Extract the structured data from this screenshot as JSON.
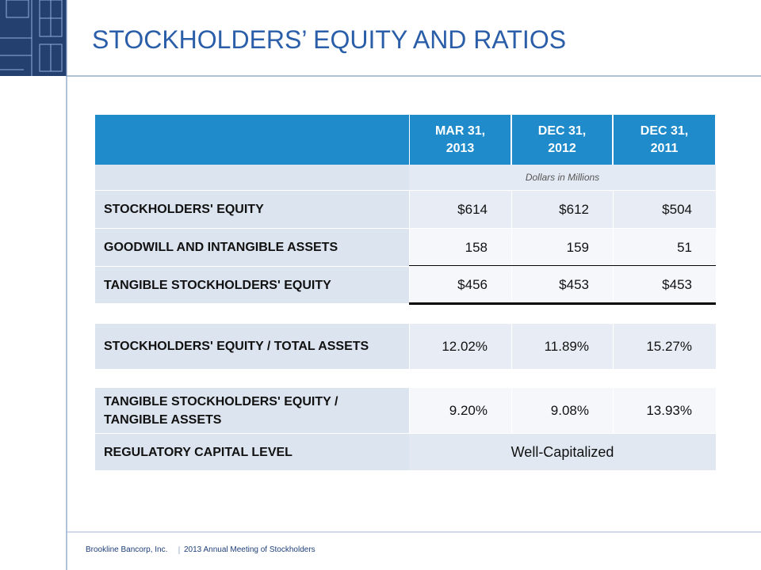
{
  "title": "STOCKHOLDERS’ EQUITY AND RATIOS",
  "table": {
    "columns": [
      "MAR 31, 2013",
      "DEC 31, 2012",
      "DEC 31, 2011"
    ],
    "unit_note": "Dollars in Millions",
    "rows": [
      {
        "label": "STOCKHOLDERS' EQUITY",
        "values": [
          "$614",
          "$612",
          "$504"
        ]
      },
      {
        "label": "GOODWILL AND INTANGIBLE ASSETS",
        "values": [
          "158",
          "159",
          "51"
        ]
      },
      {
        "label": "TANGIBLE STOCKHOLDERS' EQUITY",
        "values": [
          "$456",
          "$453",
          "$453"
        ]
      },
      {
        "label": "STOCKHOLDERS' EQUITY / TOTAL ASSETS",
        "values": [
          "12.02%",
          "11.89%",
          "15.27%"
        ]
      },
      {
        "label": "TANGIBLE STOCKHOLDERS' EQUITY / TANGIBLE ASSETS",
        "values": [
          "9.20%",
          "9.08%",
          "13.93%"
        ]
      },
      {
        "label": "REGULATORY CAPITAL LEVEL",
        "values": [
          "Well-Capitalized"
        ]
      }
    ]
  },
  "footer": {
    "company": "Brookline Bancorp, Inc.",
    "event": "2013 Annual Meeting of Stockholders"
  }
}
